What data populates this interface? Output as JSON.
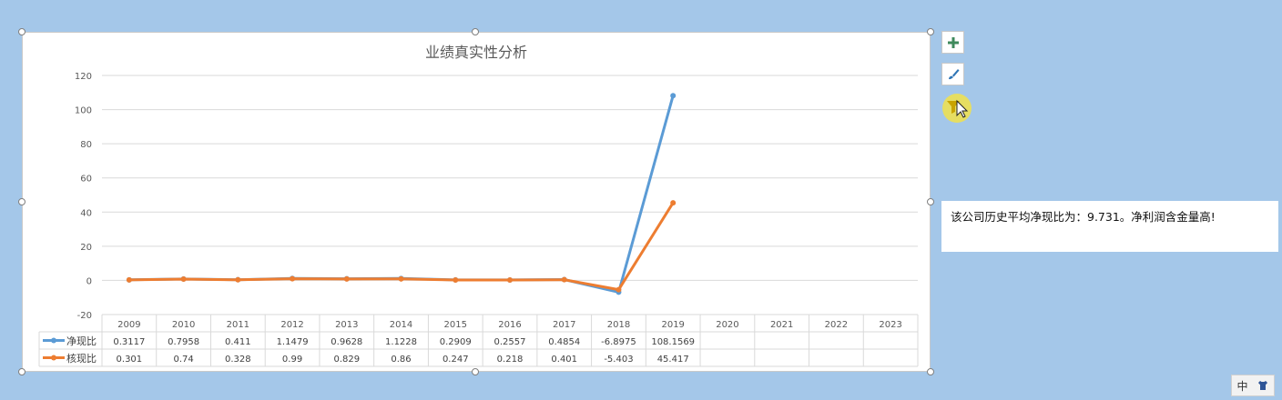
{
  "chart_data": {
    "type": "line",
    "title": "业绩真实性分析",
    "categories": [
      "2009",
      "2010",
      "2011",
      "2012",
      "2013",
      "2014",
      "2015",
      "2016",
      "2017",
      "2018",
      "2019",
      "2020",
      "2021",
      "2022",
      "2023"
    ],
    "series": [
      {
        "name": "净现比",
        "color": "#5b9bd5",
        "values": [
          0.3117,
          0.7958,
          0.411,
          1.1479,
          0.9628,
          1.1228,
          0.2909,
          0.2557,
          0.4854,
          -6.8975,
          108.1569,
          null,
          null,
          null,
          null
        ],
        "labels": [
          "0.3117",
          "0.7958",
          "0.411",
          "1.1479",
          "0.9628",
          "1.1228",
          "0.2909",
          "0.2557",
          "0.4854",
          "-6.8975",
          "108.1569",
          "",
          "",
          "",
          ""
        ]
      },
      {
        "name": "核现比",
        "color": "#ed7d31",
        "values": [
          0.301,
          0.74,
          0.328,
          0.99,
          0.829,
          0.86,
          0.247,
          0.218,
          0.401,
          -5.403,
          45.417,
          null,
          null,
          null,
          null
        ],
        "labels": [
          "0.301",
          "0.74",
          "0.328",
          "0.99",
          "0.829",
          "0.86",
          "0.247",
          "0.218",
          "0.401",
          "-5.403",
          "45.417",
          "",
          "",
          "",
          ""
        ]
      }
    ],
    "ylim": [
      -20,
      120
    ],
    "yticks": [
      -20,
      0,
      20,
      40,
      60,
      80,
      100,
      120
    ],
    "grid": true,
    "legend": "data-table"
  },
  "comment": "该公司历史平均净现比为：9.731。净利润含金量高!",
  "side_buttons": [
    {
      "icon": "plus-icon"
    },
    {
      "icon": "brush-icon"
    },
    {
      "icon": "filter-icon"
    }
  ],
  "ime": {
    "lang": "中",
    "icon": "shirt-icon"
  }
}
